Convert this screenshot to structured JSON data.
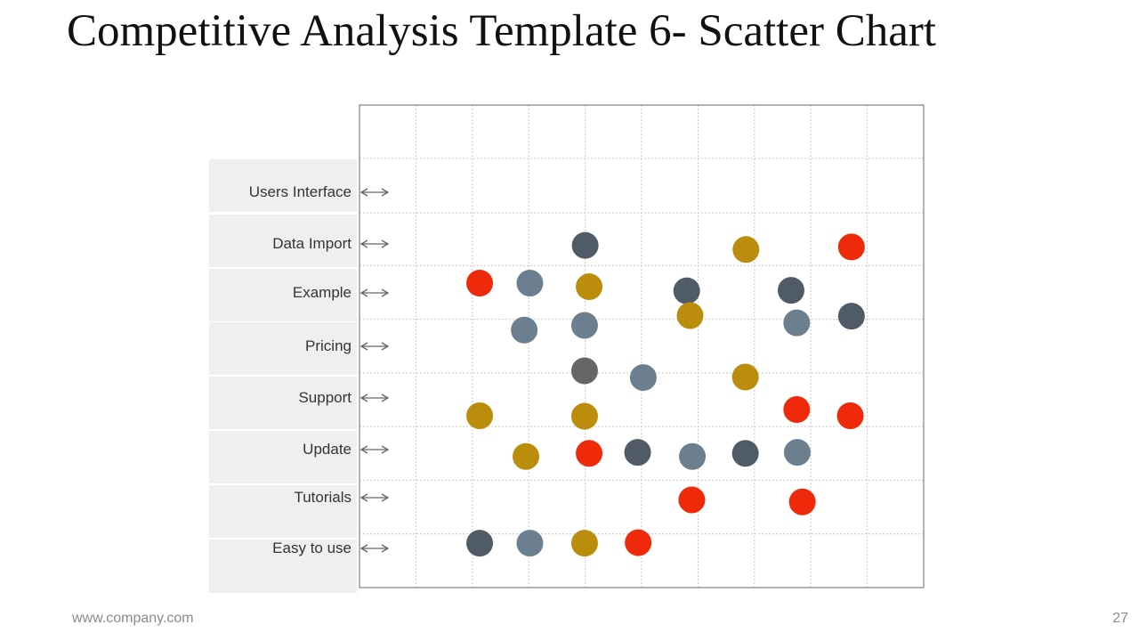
{
  "slide": {
    "title": "Competitive Analysis Template 6- Scatter Chart",
    "footer_url": "www.company.com",
    "page_number": "27"
  },
  "colors": {
    "red": "#ee2a0b",
    "gold": "#bb8d0c",
    "slate": "#6c7f8f",
    "charcoal": "#4f5b66",
    "gray": "#666666",
    "grid": "#c9c9c9",
    "frame": "#9a9a9a",
    "label_band": "#efefef",
    "arrow": "#666666"
  },
  "chart_data": {
    "type": "scatter",
    "title": "",
    "xlabel": "",
    "ylabel": "",
    "y_categories": [
      "Users Interface",
      "Data Import",
      "Example",
      "Pricing",
      "Support",
      "Update",
      "Tutorials",
      "Easy to use"
    ],
    "xlim": [
      0,
      10
    ],
    "grid": true,
    "legend": "none",
    "points": [
      {
        "row": "Users Interface",
        "x": 4.0,
        "y": 6.63,
        "color": "charcoal"
      },
      {
        "row": "Users Interface",
        "x": 6.85,
        "y": 6.55,
        "color": "gold"
      },
      {
        "row": "Users Interface",
        "x": 8.72,
        "y": 6.6,
        "color": "red"
      },
      {
        "row": "Data Import",
        "x": 2.13,
        "y": 5.9,
        "color": "red"
      },
      {
        "row": "Data Import",
        "x": 3.02,
        "y": 5.9,
        "color": "slate"
      },
      {
        "row": "Data Import",
        "x": 4.07,
        "y": 5.83,
        "color": "gold"
      },
      {
        "row": "Data Import",
        "x": 5.8,
        "y": 5.75,
        "color": "charcoal"
      },
      {
        "row": "Data Import",
        "x": 7.65,
        "y": 5.76,
        "color": "charcoal"
      },
      {
        "row": "Example",
        "x": 2.92,
        "y": 4.99,
        "color": "slate"
      },
      {
        "row": "Example",
        "x": 3.99,
        "y": 5.08,
        "color": "slate"
      },
      {
        "row": "Example",
        "x": 5.86,
        "y": 5.27,
        "color": "gold"
      },
      {
        "row": "Example",
        "x": 7.75,
        "y": 5.13,
        "color": "slate"
      },
      {
        "row": "Example",
        "x": 8.72,
        "y": 5.26,
        "color": "charcoal"
      },
      {
        "row": "Pricing",
        "x": 3.99,
        "y": 4.2,
        "color": "gray"
      },
      {
        "row": "Pricing",
        "x": 5.03,
        "y": 4.07,
        "color": "slate"
      },
      {
        "row": "Pricing",
        "x": 6.84,
        "y": 4.08,
        "color": "gold"
      },
      {
        "row": "Support",
        "x": 2.13,
        "y": 3.33,
        "color": "gold"
      },
      {
        "row": "Support",
        "x": 3.99,
        "y": 3.32,
        "color": "gold"
      },
      {
        "row": "Support",
        "x": 7.75,
        "y": 3.45,
        "color": "red"
      },
      {
        "row": "Support",
        "x": 8.7,
        "y": 3.33,
        "color": "red"
      },
      {
        "row": "Update",
        "x": 2.95,
        "y": 2.54,
        "color": "gold"
      },
      {
        "row": "Update",
        "x": 4.07,
        "y": 2.6,
        "color": "red"
      },
      {
        "row": "Update",
        "x": 4.93,
        "y": 2.62,
        "color": "charcoal"
      },
      {
        "row": "Update",
        "x": 5.9,
        "y": 2.54,
        "color": "slate"
      },
      {
        "row": "Update",
        "x": 6.84,
        "y": 2.6,
        "color": "charcoal"
      },
      {
        "row": "Update",
        "x": 7.76,
        "y": 2.62,
        "color": "slate"
      },
      {
        "row": "Tutorials",
        "x": 5.89,
        "y": 1.7,
        "color": "red"
      },
      {
        "row": "Tutorials",
        "x": 7.85,
        "y": 1.66,
        "color": "red"
      },
      {
        "row": "Easy to use",
        "x": 2.13,
        "y": 0.86,
        "color": "charcoal"
      },
      {
        "row": "Easy to use",
        "x": 3.02,
        "y": 0.86,
        "color": "slate"
      },
      {
        "row": "Easy to use",
        "x": 3.99,
        "y": 0.86,
        "color": "gold"
      },
      {
        "row": "Easy to use",
        "x": 4.94,
        "y": 0.87,
        "color": "red"
      }
    ]
  }
}
